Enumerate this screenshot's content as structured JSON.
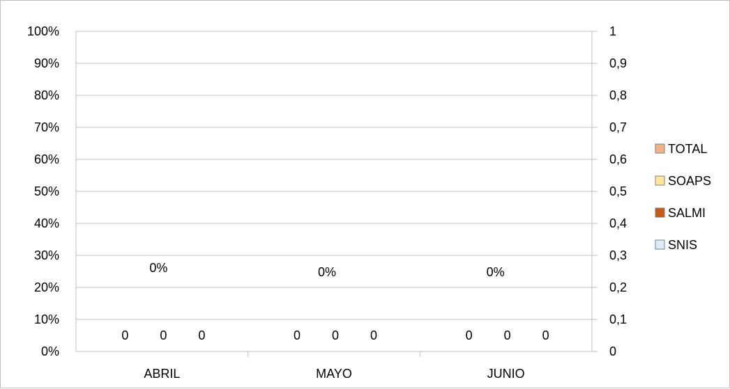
{
  "chart_data": {
    "type": "bar",
    "categories": [
      "ABRIL",
      "MAYO",
      "JUNIO"
    ],
    "series": [
      {
        "name": "TOTAL",
        "axis": "left",
        "values": [
          0,
          0,
          0
        ],
        "labels": [
          "0%",
          "0%",
          "0%"
        ],
        "color": "#f4b183"
      },
      {
        "name": "SOAPS",
        "axis": "right",
        "values": [
          0,
          0,
          0
        ],
        "labels": [
          "0",
          "0",
          "0"
        ],
        "color": "#ffe699"
      },
      {
        "name": "SALMI",
        "axis": "right",
        "values": [
          0,
          0,
          0
        ],
        "labels": [
          "0",
          "0",
          "0"
        ],
        "color": "#c55a11"
      },
      {
        "name": "SNIS",
        "axis": "right",
        "values": [
          0,
          0,
          0
        ],
        "labels": [
          "0",
          "0",
          "0"
        ],
        "color": "#deebf7"
      }
    ],
    "left_axis": {
      "ylim": [
        0,
        1
      ],
      "tick_values": [
        0,
        0.1,
        0.2,
        0.3,
        0.4,
        0.5,
        0.6,
        0.7,
        0.8,
        0.9,
        1
      ],
      "tick_labels": [
        "0%",
        "10%",
        "20%",
        "30%",
        "40%",
        "50%",
        "60%",
        "70%",
        "80%",
        "90%",
        "100%"
      ]
    },
    "right_axis": {
      "ylim": [
        0,
        1
      ],
      "tick_values": [
        0,
        0.1,
        0.2,
        0.3,
        0.4,
        0.5,
        0.6,
        0.7,
        0.8,
        0.9,
        1
      ],
      "tick_labels": [
        "0",
        "0,1",
        "0,2",
        "0,3",
        "0,4",
        "0,5",
        "0,6",
        "0,7",
        "0,8",
        "0,9",
        "1"
      ]
    },
    "grid": true,
    "legend": {
      "position": "right",
      "entries": [
        "TOTAL",
        "SOAPS",
        "SALMI",
        "SNIS"
      ]
    },
    "colors": {
      "grid": "#bfbfbf",
      "axis": "#bfbfbf",
      "legend_border": "#7f7f7f"
    }
  }
}
